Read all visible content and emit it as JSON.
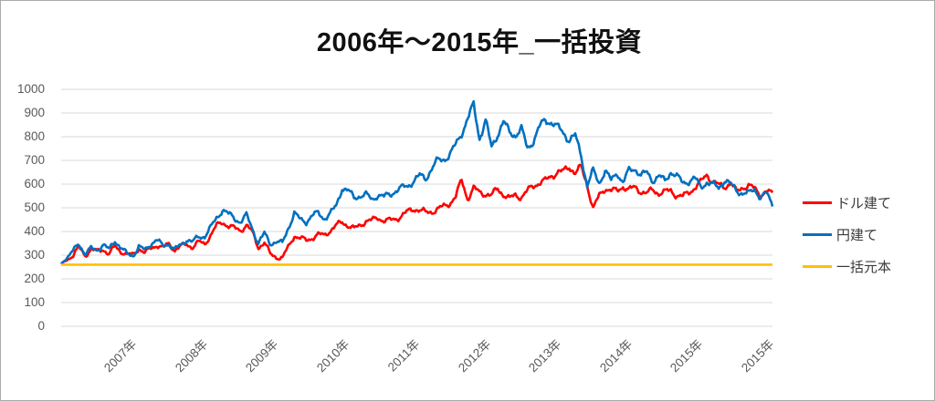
{
  "chart": {
    "title": "2006年～2015年_一括投資"
  },
  "chart_data": {
    "type": "line",
    "title": "2006年～2015年_一括投資",
    "x_tick_labels": [
      "2007年",
      "2008年",
      "2009年",
      "2010年",
      "2011年",
      "2012年",
      "2013年",
      "2014年",
      "2015年",
      "2015年"
    ],
    "x_range": "2006-2015 (monthly values)",
    "y_ticks": [
      0,
      100,
      200,
      300,
      400,
      500,
      600,
      700,
      800,
      900,
      1000
    ],
    "ylim": [
      0,
      1000
    ],
    "grid": "horizontal",
    "legend_position": "right",
    "colors": {
      "dollar": "#FF0000",
      "yen": "#0070C0",
      "principal": "#FFC000",
      "gridline": "#D9D9D9",
      "axis_text": "#595959"
    },
    "series": [
      {
        "name": "ドル建て",
        "color": "#FF0000",
        "values": [
          262,
          284,
          304,
          334,
          298,
          318,
          312,
          328,
          308,
          342,
          318,
          298,
          296,
          328,
          310,
          334,
          348,
          330,
          344,
          318,
          334,
          350,
          340,
          358,
          346,
          380,
          418,
          440,
          428,
          418,
          408,
          424,
          388,
          330,
          354,
          308,
          298,
          288,
          330,
          378,
          368,
          364,
          380,
          390,
          384,
          400,
          418,
          438,
          430,
          416,
          430,
          444,
          440,
          454,
          446,
          450,
          460,
          470,
          480,
          490,
          486,
          480,
          490,
          500,
          506,
          516,
          540,
          612,
          542,
          588,
          570,
          560,
          545,
          575,
          555,
          540,
          562,
          550,
          568,
          588,
          600,
          612,
          640,
          658,
          655,
          672,
          640,
          665,
          600,
          502,
          555,
          585,
          570,
          562,
          588,
          578,
          592,
          576,
          560,
          570,
          556,
          564,
          576,
          560,
          550,
          564,
          580,
          600,
          640,
          618,
          600,
          592,
          604,
          558,
          582,
          596,
          584,
          560,
          574,
          550
        ]
      },
      {
        "name": "円建て",
        "color": "#0070C0",
        "values": [
          265,
          288,
          312,
          348,
          308,
          332,
          326,
          344,
          318,
          358,
          330,
          308,
          305,
          338,
          318,
          344,
          360,
          338,
          354,
          328,
          344,
          364,
          350,
          374,
          382,
          420,
          462,
          494,
          468,
          450,
          438,
          470,
          418,
          355,
          390,
          345,
          352,
          348,
          420,
          484,
          452,
          440,
          462,
          472,
          456,
          480,
          512,
          588,
          568,
          535,
          548,
          556,
          540,
          562,
          546,
          552,
          566,
          580,
          596,
          622,
          640,
          624,
          660,
          692,
          704,
          728,
          772,
          822,
          872,
          924,
          788,
          868,
          760,
          820,
          864,
          814,
          800,
          826,
          752,
          792,
          846,
          873,
          856,
          830,
          815,
          790,
          810,
          730,
          592,
          650,
          600,
          655,
          618,
          658,
          610,
          655,
          660,
          630,
          648,
          622,
          640,
          615,
          650,
          625,
          600,
          615,
          630,
          594,
          610,
          592,
          578,
          614,
          600,
          582,
          566,
          558,
          576,
          536,
          558,
          520
        ]
      },
      {
        "name": "一括元本",
        "color": "#FFC000",
        "constant": 260
      }
    ]
  }
}
